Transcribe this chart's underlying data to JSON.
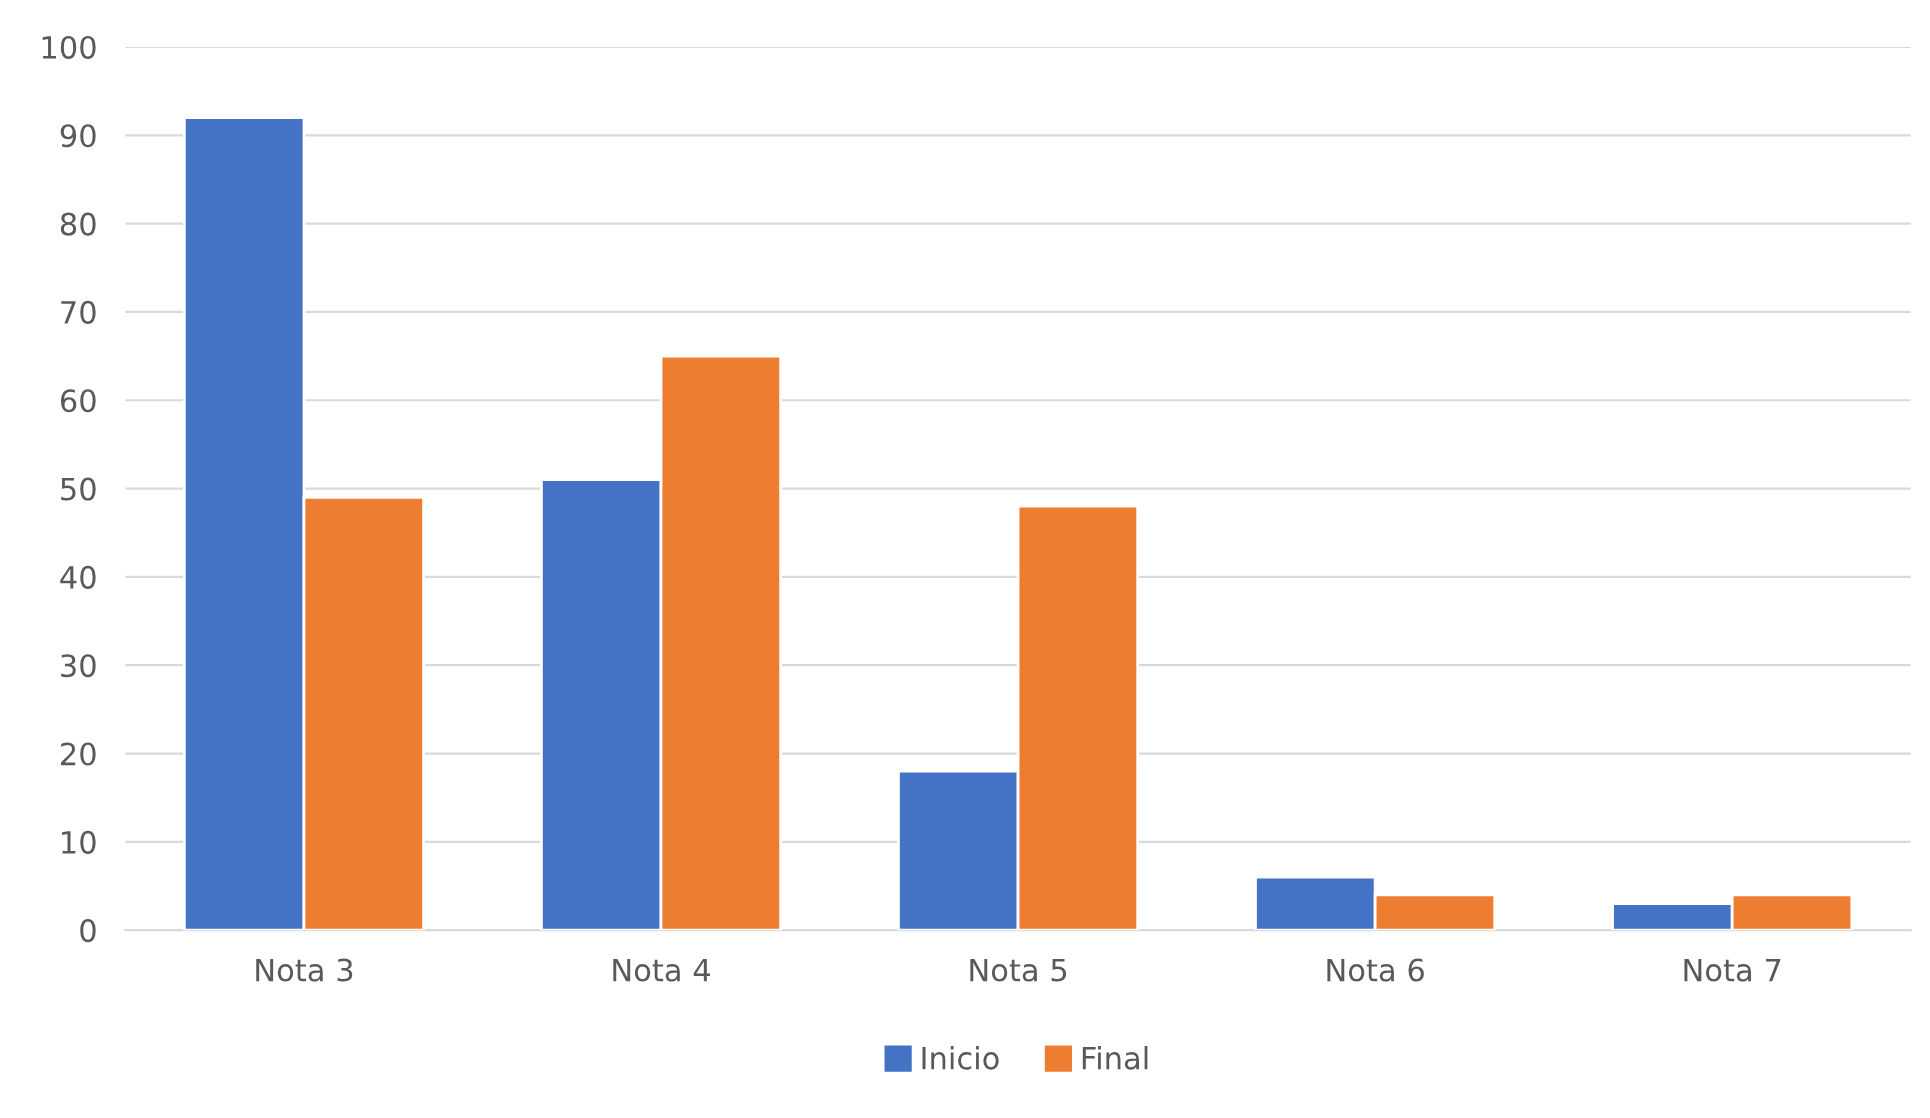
{
  "chart_data": {
    "type": "bar",
    "categories": [
      "Nota 3",
      "Nota 4",
      "Nota 5",
      "Nota 6",
      "Nota 7"
    ],
    "series": [
      {
        "name": "Inicio",
        "color": "#4472c4",
        "values": [
          92,
          51,
          18,
          6,
          3
        ]
      },
      {
        "name": "Final",
        "color": "#ed7d31",
        "values": [
          49,
          65,
          48,
          4,
          4
        ]
      }
    ],
    "ylim": [
      0,
      100
    ],
    "yticks": [
      0,
      10,
      20,
      30,
      40,
      50,
      60,
      70,
      80,
      90,
      100
    ],
    "grid": "y",
    "legend": "bottom"
  }
}
